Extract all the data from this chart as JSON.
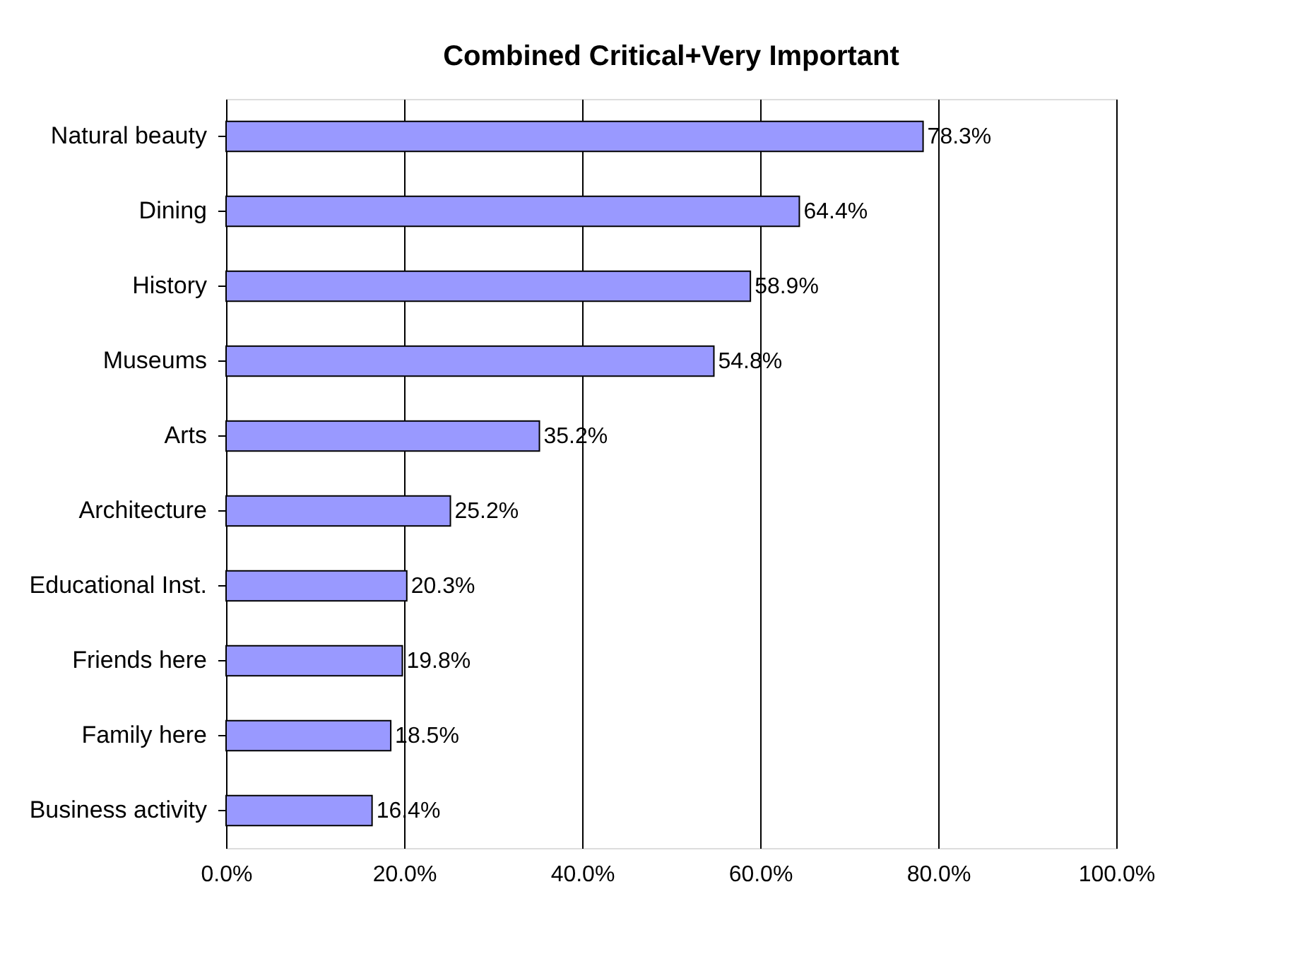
{
  "chart_data": {
    "type": "bar",
    "orientation": "horizontal",
    "title": "Combined Critical+Very Important",
    "categories": [
      "Natural beauty",
      "Dining",
      "History",
      "Museums",
      "Arts",
      "Architecture",
      "Educational Inst.",
      "Friends here",
      "Family here",
      "Business activity"
    ],
    "values": [
      78.3,
      64.4,
      58.9,
      54.8,
      35.2,
      25.2,
      20.3,
      19.8,
      18.5,
      16.4
    ],
    "value_labels": [
      "78.3%",
      "64.4%",
      "58.9%",
      "54.8%",
      "35.2%",
      "25.2%",
      "20.3%",
      "19.8%",
      "18.5%",
      "16.4%"
    ],
    "color": "#9999ff",
    "xlim": [
      0,
      100
    ],
    "xticks": [
      {
        "value": 0,
        "label": "0.0%"
      },
      {
        "value": 20,
        "label": "20.0%"
      },
      {
        "value": 40,
        "label": "40.0%"
      },
      {
        "value": 60,
        "label": "60.0%"
      },
      {
        "value": 80,
        "label": "80.0%"
      },
      {
        "value": 100,
        "label": "100.0%"
      }
    ],
    "grid": "x"
  }
}
